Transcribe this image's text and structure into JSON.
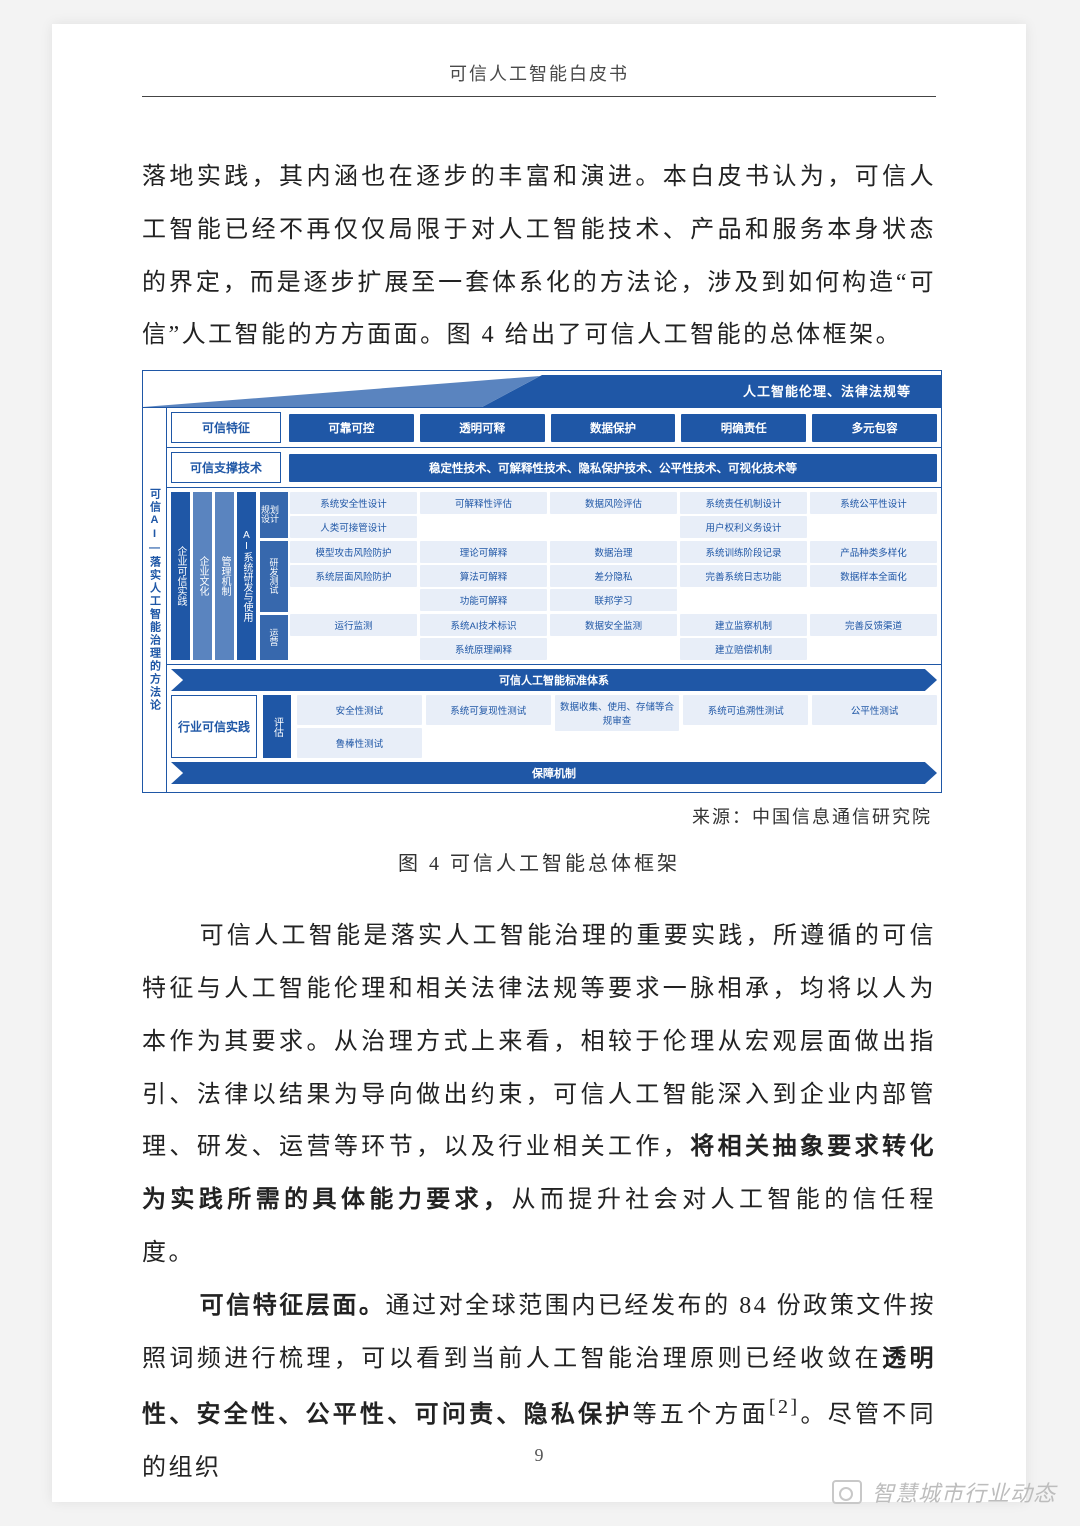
{
  "page": {
    "running_head": "可信人工智能白皮书",
    "number": "9"
  },
  "paragraphs": {
    "p1": "落地实践，其内涵也在逐步的丰富和演进。本白皮书认为，可信人工智能已经不再仅仅局限于对人工智能技术、产品和服务本身状态的界定，而是逐步扩展至一套体系化的方法论，涉及到如何构造“可信”人工智能的方方面面。图 4 给出了可信人工智能的总体框架。",
    "p2_a": "可信人工智能是落实人工智能治理的重要实践，所遵循的可信特征与人工智能伦理和相关法律法规等要求一脉相承，均将以人为本作为其要求。从治理方式上来看，相较于伦理从宏观层面做出指引、法律以结果为导向做出约束，可信人工智能深入到企业内部管理、研发、运营等环节，以及行业相关工作，",
    "p2_b": "将相关抽象要求转化为实践所需的具体能力要求，",
    "p2_c": "从而提升社会对人工智能的信任程度。",
    "p3_a": "可信特征层面。",
    "p3_b": "通过对全球范围内已经发布的 84 份政策文件按照词频进行梳理，可以看到当前人工智能治理原则已经收敛在",
    "p3_c": "透明性、安全性、公平性、可问责、隐私保护",
    "p3_d": "等五个方面",
    "p3_e": "[2]",
    "p3_f": "。尽管不同的组织"
  },
  "caption": {
    "source": "来源：中国信息通信研究院",
    "text": "图 4 可信人工智能总体框架"
  },
  "watermark": "智慧城市行业动态",
  "diagram": {
    "colors": {
      "primary": "#1f57a6",
      "light": "#5a84bf",
      "cell_bg": "#e8eef8"
    },
    "roof": "人工智能伦理、法律法规等",
    "side": "可信AI—落实人工智能治理的方法论",
    "row_features": {
      "label": "可信特征",
      "items": [
        "可靠可控",
        "透明可释",
        "数据保护",
        "明确责任",
        "多元包容"
      ]
    },
    "row_tech": {
      "label": "可信支撑技术",
      "band": "稳定性技术、可解释性技术、隐私保护技术、公平性技术、可视化技术等"
    },
    "enterprise": {
      "vbars": [
        "企业可信实践",
        "企业文化",
        "管理机制",
        "AI系统研发与使用"
      ],
      "phases": [
        "规划设计",
        "研发测试",
        "运营"
      ],
      "grid": [
        [
          [
            "系统安全性设计",
            "人类可接管设计"
          ],
          [
            "可解释性评估"
          ],
          [
            "数据风险评估"
          ],
          [
            "系统责任机制设计",
            "用户权利义务设计"
          ],
          [
            "系统公平性设计"
          ]
        ],
        [
          [
            "模型攻击风险防护",
            "系统层面风险防护"
          ],
          [
            "理论可解释",
            "算法可解释",
            "功能可解释"
          ],
          [
            "数据治理",
            "差分隐私",
            "联邦学习"
          ],
          [
            "系统训练阶段记录",
            "完善系统日志功能"
          ],
          [
            "产品种类多样化",
            "数据样本全面化"
          ]
        ],
        [
          [
            "运行监测"
          ],
          [
            "系统AI技术标识",
            "系统原理阐释"
          ],
          [
            "数据安全监测"
          ],
          [
            "建立监察机制",
            "建立赔偿机制"
          ],
          [
            "完善反馈渠道"
          ]
        ]
      ]
    },
    "standards_band": "可信人工智能标准体系",
    "industry": {
      "label": "行业可信实践",
      "assess": "评估",
      "cols": [
        [
          "安全性测试",
          "鲁棒性测试"
        ],
        [
          "系统可复现性测试"
        ],
        [
          "数据收集、使用、存储等合规审查"
        ],
        [
          "系统可追溯性测试"
        ],
        [
          "公平性测试"
        ]
      ]
    },
    "footer_band": "保障机制"
  }
}
